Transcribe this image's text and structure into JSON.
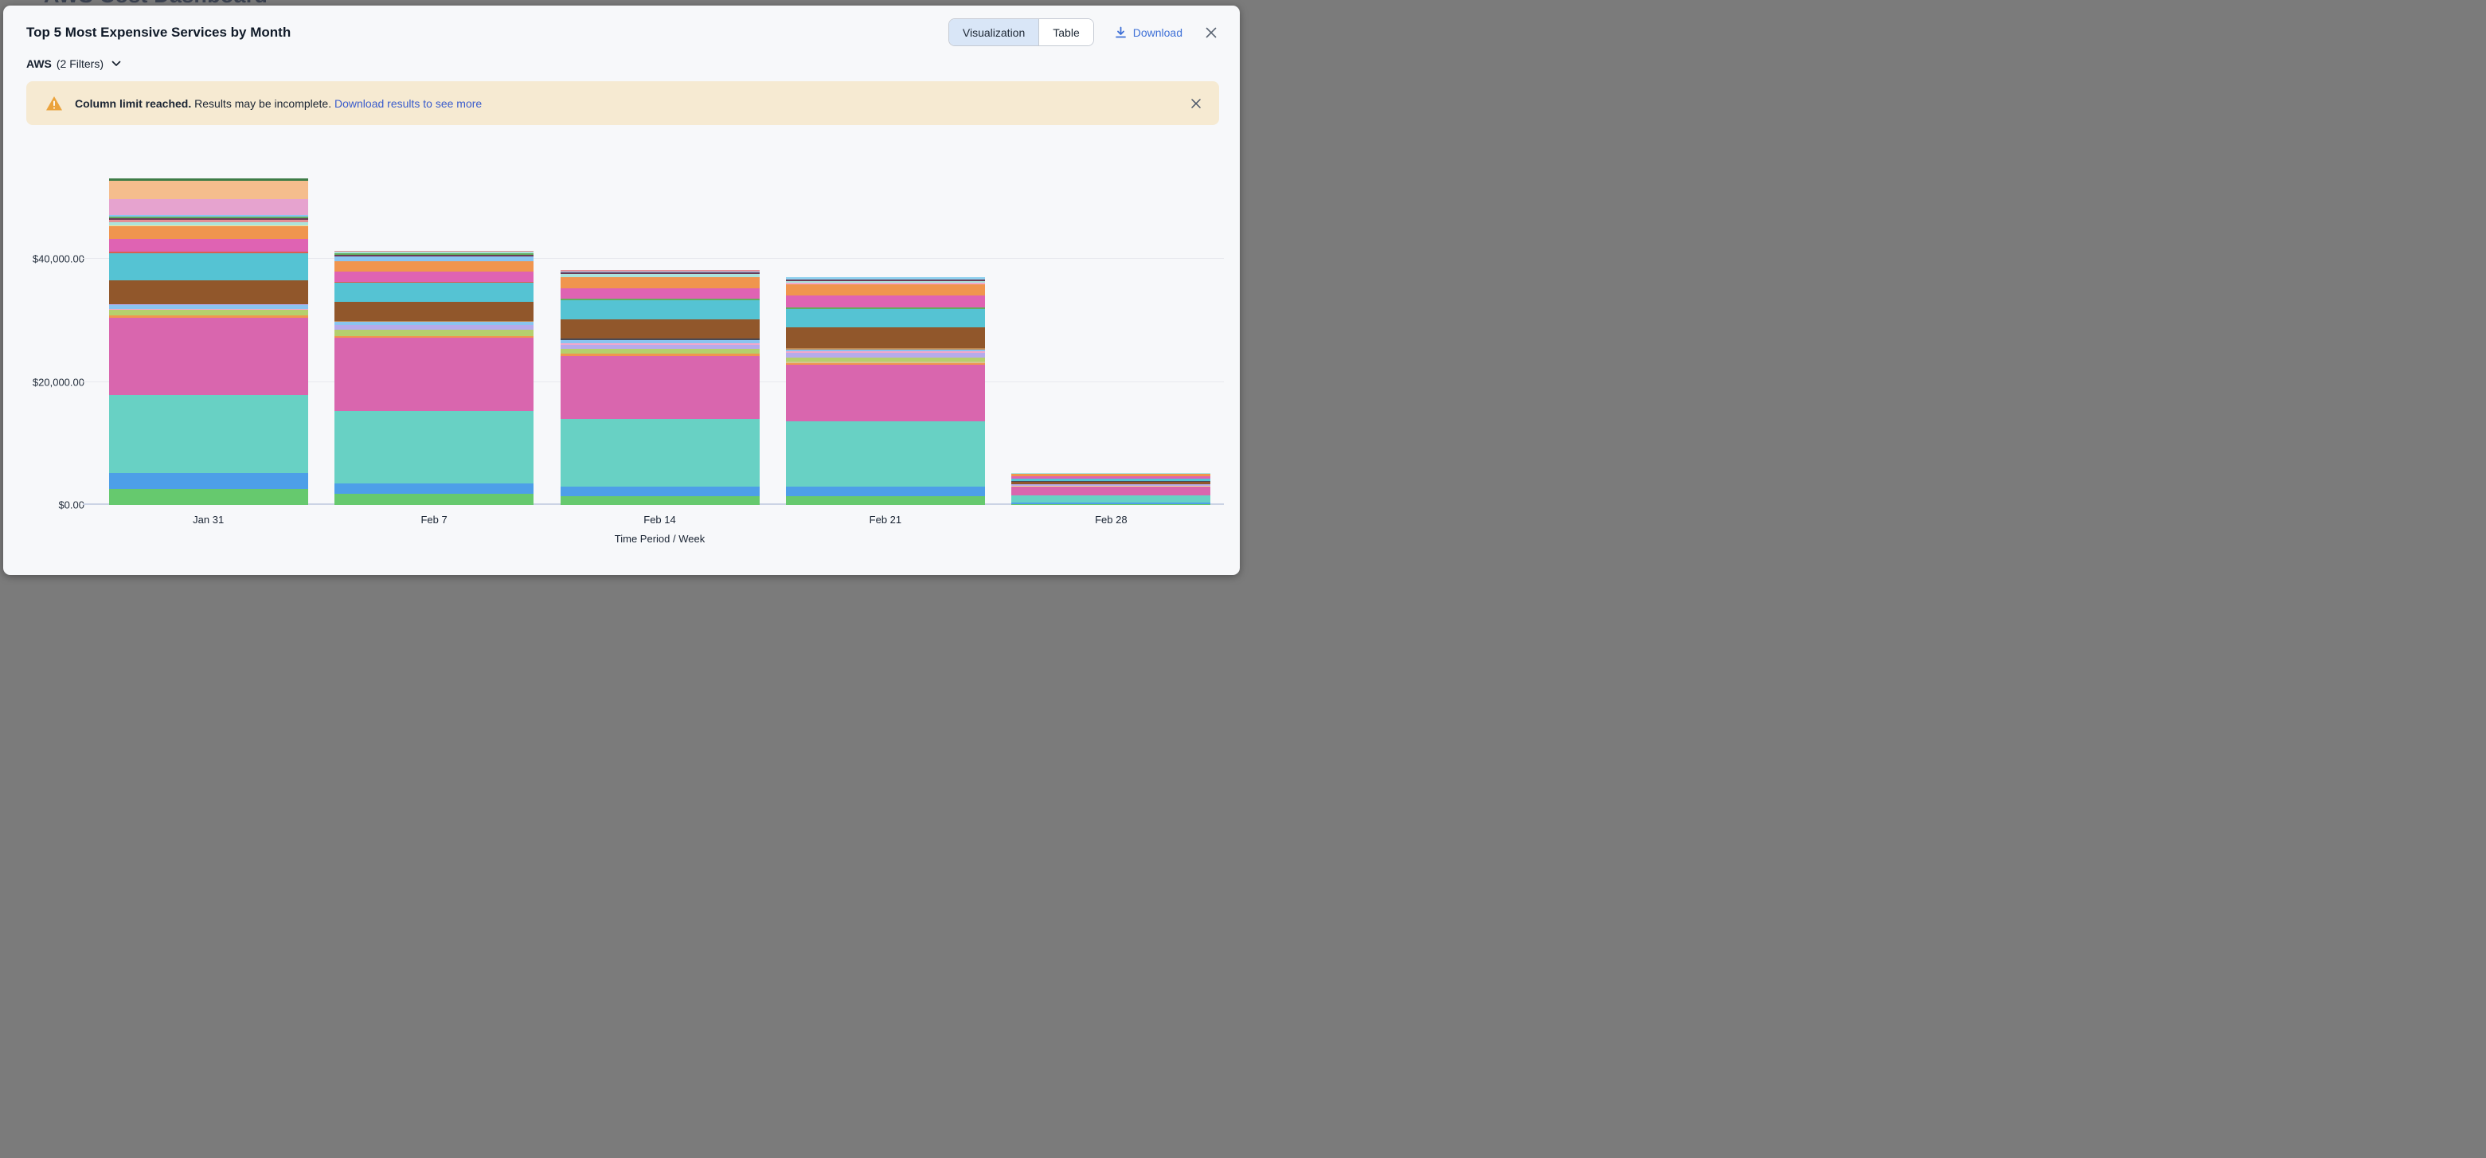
{
  "background": {
    "clipped_heading": "AWS Cost Dashboard"
  },
  "modal": {
    "title": "Top 5 Most Expensive Services by Month",
    "filter": {
      "label": "AWS",
      "detail": "(2 Filters)"
    },
    "view_toggle": {
      "options": [
        "Visualization",
        "Table"
      ],
      "selected": "Visualization"
    },
    "download_label": "Download",
    "banner": {
      "bold_text": "Column limit reached.",
      "body_text": "Results may be incomplete.",
      "link_text": "Download results to see more"
    }
  },
  "colors": {
    "modal_bg": "#f7f8fa",
    "banner_bg": "#f6ead2",
    "banner_icon": "#eba33c",
    "link_blue": "#3a5ccc",
    "download_blue": "#3d6fd6",
    "selected_toggle_bg": "#d9e6f7",
    "gridline": "#e8e9ee",
    "axis_line": "#cbd3e4"
  },
  "chart_data": {
    "type": "bar",
    "variant": "stacked",
    "title": "Top 5 Most Expensive Services by Month",
    "xlabel": "Time Period / Week",
    "ylabel": "",
    "categories": [
      "Jan 31",
      "Feb 7",
      "Feb 14",
      "Feb 21",
      "Feb 28"
    ],
    "y_ticks": [
      "$0.00",
      "$20,000.00",
      "$40,000.00"
    ],
    "y_tick_values": [
      0,
      20000,
      40000
    ],
    "ylim": [
      0,
      60000
    ],
    "grid": true,
    "legend": "none",
    "totals": [
      53155,
      41350,
      38255,
      37090,
      5255
    ],
    "palette": {
      "green": "#66c96e",
      "blue": "#4d9fe8",
      "teal": "#68d1c4",
      "pink": "#d966ae",
      "orange": "#f0954e",
      "yellowgreen": "#b5cf6d",
      "lightblue": "#8ac4f0",
      "lavender": "#b6abeb",
      "brown": "#91572b",
      "tan": "#c0874e",
      "cyan": "#55c3d3",
      "red": "#d95f52",
      "pink2": "#df63b3",
      "paleyellow": "#f0df9c",
      "mint": "#ace3db",
      "salmon": "#e39097",
      "maroon": "#6b3a55",
      "green2": "#63ad5e",
      "plum": "#e6a3cf",
      "sandy": "#f5bd8d",
      "darkgreen": "#3e7c47",
      "darkgray": "#4a4a55",
      "sky": "#8fd0ee",
      "pinkthin": "#f2a9cc",
      "khaki": "#d6c58f"
    },
    "bars": [
      {
        "category": "Jan 31",
        "segments": [
          [
            "green",
            2590
          ],
          [
            "blue",
            2590
          ],
          [
            "teal",
            12690
          ],
          [
            "pink",
            12620
          ],
          [
            "orange",
            325
          ],
          [
            "yellowgreen",
            905
          ],
          [
            "pinkthin",
            195
          ],
          [
            "lightblue",
            580
          ],
          [
            "lavender",
            195
          ],
          [
            "brown",
            3880
          ],
          [
            "cyan",
            4340
          ],
          [
            "red",
            260
          ],
          [
            "pink2",
            2070
          ],
          [
            "orange",
            2070
          ],
          [
            "paleyellow",
            195
          ],
          [
            "mint",
            455
          ],
          [
            "salmon",
            390
          ],
          [
            "maroon",
            325
          ],
          [
            "green2",
            195
          ],
          [
            "lightblue",
            325
          ],
          [
            "plum",
            2590
          ],
          [
            "sandy",
            2980
          ],
          [
            "darkgreen",
            390
          ]
        ]
      },
      {
        "category": "Feb 7",
        "segments": [
          [
            "green",
            1810
          ],
          [
            "blue",
            1680
          ],
          [
            "teal",
            11845
          ],
          [
            "pink",
            11845
          ],
          [
            "orange",
            325
          ],
          [
            "yellowgreen",
            970
          ],
          [
            "lavender",
            775
          ],
          [
            "lightblue",
            520
          ],
          [
            "tan",
            195
          ],
          [
            "brown",
            3105
          ],
          [
            "cyan",
            3040
          ],
          [
            "red",
            195
          ],
          [
            "pink2",
            1680
          ],
          [
            "orange",
            1680
          ],
          [
            "lightblue",
            710
          ],
          [
            "maroon",
            260
          ],
          [
            "green2",
            260
          ],
          [
            "mint",
            260
          ],
          [
            "salmon",
            195
          ]
        ]
      },
      {
        "category": "Feb 14",
        "segments": [
          [
            "green",
            1425
          ],
          [
            "blue",
            1555
          ],
          [
            "teal",
            11000
          ],
          [
            "pink",
            10225
          ],
          [
            "orange",
            390
          ],
          [
            "yellowgreen",
            775
          ],
          [
            "lavender",
            710
          ],
          [
            "pinkthin",
            260
          ],
          [
            "lightblue",
            455
          ],
          [
            "darkgray",
            260
          ],
          [
            "brown",
            3170
          ],
          [
            "cyan",
            3040
          ],
          [
            "green2",
            260
          ],
          [
            "pink2",
            1750
          ],
          [
            "orange",
            1750
          ],
          [
            "mint",
            580
          ],
          [
            "maroon",
            195
          ],
          [
            "lightblue",
            195
          ],
          [
            "salmon",
            260
          ]
        ]
      },
      {
        "category": "Feb 21",
        "segments": [
          [
            "green",
            1425
          ],
          [
            "blue",
            1555
          ],
          [
            "teal",
            10680
          ],
          [
            "pink",
            9190
          ],
          [
            "orange",
            260
          ],
          [
            "khaki",
            195
          ],
          [
            "yellowgreen",
            710
          ],
          [
            "lavender",
            710
          ],
          [
            "pinkthin",
            260
          ],
          [
            "lightblue",
            325
          ],
          [
            "tan",
            260
          ],
          [
            "brown",
            3300
          ],
          [
            "cyan",
            3040
          ],
          [
            "green2",
            195
          ],
          [
            "pink2",
            1940
          ],
          [
            "orange",
            1875
          ],
          [
            "pinkthin",
            195
          ],
          [
            "mint",
            325
          ],
          [
            "maroon",
            195
          ],
          [
            "sky",
            455
          ]
        ]
      },
      {
        "category": "Feb 28",
        "segments": [
          [
            "green",
            130
          ],
          [
            "blue",
            325
          ],
          [
            "teal",
            1165
          ],
          [
            "pink",
            1425
          ],
          [
            "paleyellow",
            130
          ],
          [
            "lavender",
            195
          ],
          [
            "brown",
            390
          ],
          [
            "darkgray",
            130
          ],
          [
            "cyan",
            455
          ],
          [
            "pink2",
            325
          ],
          [
            "orange",
            390
          ],
          [
            "mint",
            195
          ]
        ]
      }
    ]
  }
}
